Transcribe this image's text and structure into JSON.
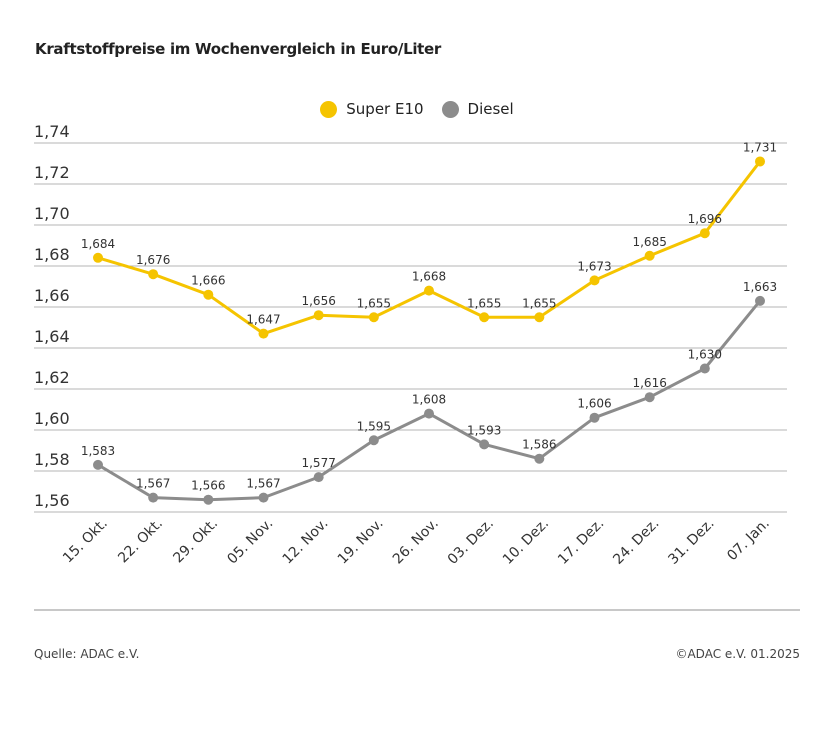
{
  "chart_data": {
    "type": "line",
    "title": "Kraftstoffpreise im Wochenvergleich in Euro/Liter",
    "categories": [
      "15. Okt.",
      "22. Okt.",
      "29. Okt.",
      "05. Nov.",
      "12. Nov.",
      "19. Nov.",
      "26. Nov.",
      "03. Dez.",
      "10. Dez.",
      "17. Dez.",
      "24. Dez.",
      "31. Dez.",
      "07. Jan."
    ],
    "series": [
      {
        "name": "Super E10",
        "color": "#F5C400",
        "values": [
          1.684,
          1.676,
          1.666,
          1.647,
          1.656,
          1.655,
          1.668,
          1.655,
          1.655,
          1.673,
          1.685,
          1.696,
          1.731
        ],
        "labels": [
          "1,684",
          "1,676",
          "1,666",
          "1,647",
          "1,656",
          "1,655",
          "1,668",
          "1,655",
          "1,655",
          "1,673",
          "1,685",
          "1,696",
          "1,731"
        ]
      },
      {
        "name": "Diesel",
        "color": "#8C8C8C",
        "values": [
          1.583,
          1.567,
          1.566,
          1.567,
          1.577,
          1.595,
          1.608,
          1.593,
          1.586,
          1.606,
          1.616,
          1.63,
          1.663
        ],
        "labels": [
          "1,583",
          "1,567",
          "1,566",
          "1,567",
          "1,577",
          "1,595",
          "1,608",
          "1,593",
          "1,586",
          "1,606",
          "1,616",
          "1,630",
          "1,663"
        ]
      }
    ],
    "ylim": [
      1.56,
      1.74
    ],
    "yticks": [
      "1,56",
      "1,58",
      "1,60",
      "1,62",
      "1,64",
      "1,66",
      "1,68",
      "1,70",
      "1,72",
      "1,74"
    ],
    "grid": true,
    "legend": "top-center"
  },
  "footer": {
    "source": "Quelle: ADAC e.V.",
    "copyright": "©ADAC e.V. 01.2025"
  }
}
